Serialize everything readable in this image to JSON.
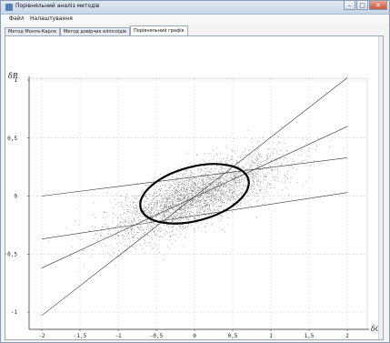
{
  "window": {
    "title": "Порівняльний аналіз методів"
  },
  "menu": [
    "Файл",
    "Налаштування"
  ],
  "tabs": [
    {
      "label": "Метод Монте-Карло",
      "active": false
    },
    {
      "label": "Метод довірчих еліпсоїдів",
      "active": false
    },
    {
      "label": "Порівняльний графік",
      "active": true
    }
  ],
  "chart_data": {
    "type": "scatter",
    "xlabel": "δC",
    "ylabel": "δR",
    "xlim": [
      -2,
      2
    ],
    "ylim": [
      -1,
      1
    ],
    "x_ticks": [
      "-2",
      "-1,5",
      "-1",
      "-0,5",
      "0",
      "0,5",
      "1",
      "1,5",
      "2"
    ],
    "y_ticks": [
      "-1",
      "-0,5",
      "0",
      "0,5",
      "1"
    ],
    "grid": true,
    "point_cloud": {
      "center": [
        0,
        0
      ],
      "correlation": 0.75,
      "x_spread": 0.55,
      "y_spread": 0.18,
      "color": "#8a8a8a"
    },
    "ellipse": {
      "center": [
        0.0,
        0.02
      ],
      "semi_major": 0.73,
      "semi_minor": 0.08,
      "angle_deg": 15,
      "color": "#000000"
    },
    "lines": [
      {
        "points": [
          [
            -2,
            -1.03
          ],
          [
            2,
            1.02
          ]
        ]
      },
      {
        "points": [
          [
            -2,
            -0.62
          ],
          [
            2,
            0.6
          ]
        ]
      },
      {
        "points": [
          [
            -2,
            0.0
          ],
          [
            2,
            0.33
          ]
        ]
      },
      {
        "points": [
          [
            -2,
            -0.37
          ],
          [
            2,
            0.03
          ]
        ]
      }
    ]
  }
}
